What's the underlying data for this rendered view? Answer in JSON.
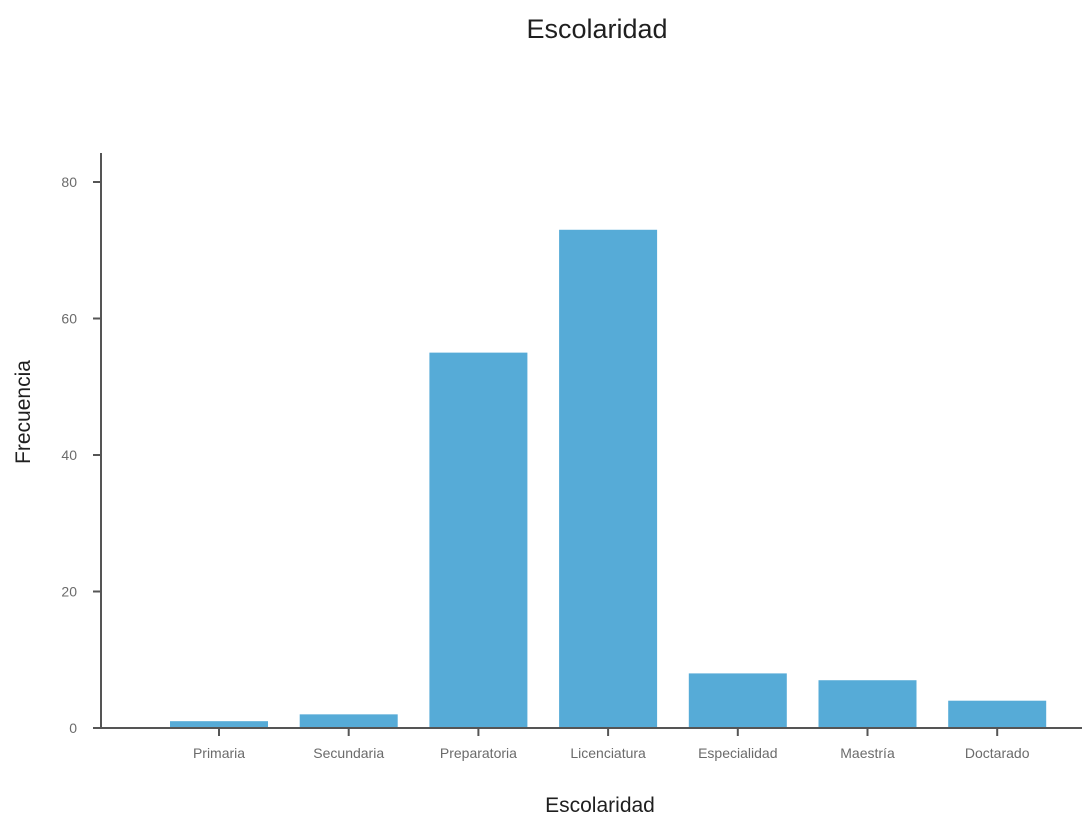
{
  "chart_data": {
    "type": "bar",
    "title": "Escolaridad",
    "xlabel": "Escolaridad",
    "ylabel": "Frecuencia",
    "categories": [
      "Primaria",
      "Secundaria",
      "Preparatoria",
      "Licenciatura",
      "Especialidad",
      "Maestría",
      "Doctarado"
    ],
    "values": [
      1,
      2,
      55,
      73,
      8,
      7,
      4
    ],
    "yticks": [
      0,
      20,
      40,
      60,
      80
    ],
    "ylim": [
      0,
      80
    ],
    "grid": false,
    "bar_color": "#56abd7"
  }
}
